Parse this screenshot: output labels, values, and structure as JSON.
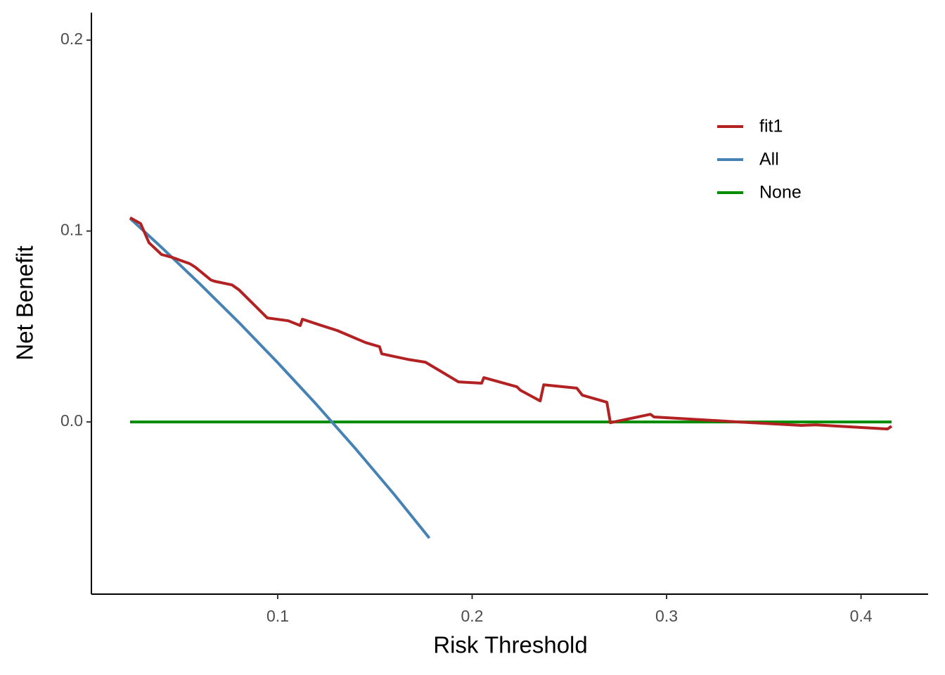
{
  "chart_data": {
    "type": "line",
    "x_label": "Risk Threshold",
    "y_label": "Net Benefit",
    "xlim": [
      0.0042,
      0.4345
    ],
    "ylim": [
      -0.0902,
      0.2144
    ],
    "xticks": [
      0.1,
      0.2,
      0.3,
      0.4
    ],
    "yticks": [
      {
        "value": 0,
        "label": "0.0"
      },
      0.1,
      0.2
    ],
    "grid": false,
    "legend": "top-right",
    "series": [
      {
        "name": "fit1",
        "color": "#b22222",
        "x": [
          0.0241,
          0.0295,
          0.0338,
          0.0403,
          0.0458,
          0.0548,
          0.0577,
          0.0656,
          0.0675,
          0.0765,
          0.0801,
          0.0892,
          0.0946,
          0.1054,
          0.1116,
          0.1127,
          0.1217,
          0.1307,
          0.1452,
          0.1524,
          0.1535,
          0.1669,
          0.176,
          0.193,
          0.2049,
          0.206,
          0.223,
          0.2248,
          0.235,
          0.2368,
          0.2538,
          0.2567,
          0.2693,
          0.2711,
          0.2917,
          0.2935,
          0.3188,
          0.3369,
          0.3694,
          0.3767,
          0.4136,
          0.4157
        ],
        "values": [
          0.107,
          0.1039,
          0.0939,
          0.0877,
          0.0862,
          0.0829,
          0.081,
          0.0744,
          0.0737,
          0.0718,
          0.0692,
          0.06,
          0.0545,
          0.053,
          0.0505,
          0.0538,
          0.0508,
          0.0479,
          0.0416,
          0.0394,
          0.0357,
          0.0328,
          0.0313,
          0.021,
          0.0203,
          0.0232,
          0.0184,
          0.0166,
          0.011,
          0.0195,
          0.0177,
          0.014,
          0.0103,
          -0.0004,
          0.004,
          0.0026,
          0.0011,
          0,
          -0.0018,
          -0.0015,
          -0.0037,
          -0.0022
        ]
      },
      {
        "name": "All",
        "color": "#4682b4",
        "x": [
          0.0241,
          0.04,
          0.06,
          0.08,
          0.1,
          0.12,
          0.14,
          0.16,
          0.178
        ],
        "values": [
          0.1066,
          0.0917,
          0.0723,
          0.0522,
          0.0311,
          0.0091,
          -0.014,
          -0.0381,
          -0.0608
        ]
      },
      {
        "name": "None",
        "color": "#008b00",
        "x": [
          0.0241,
          0.4157
        ],
        "values": [
          0,
          0
        ]
      }
    ]
  }
}
